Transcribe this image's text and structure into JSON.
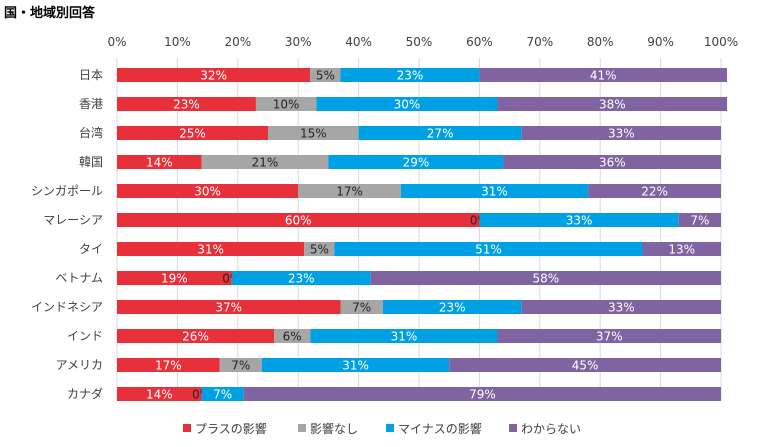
{
  "title": "国・地域別回答",
  "chart_data": {
    "type": "bar",
    "orientation": "horizontal",
    "stacked": "percent",
    "title": "国・地域別回答",
    "xlim": [
      0,
      100
    ],
    "xticks": [
      "0%",
      "10%",
      "20%",
      "30%",
      "40%",
      "50%",
      "60%",
      "70%",
      "80%",
      "90%",
      "100%"
    ],
    "categories": [
      "日本",
      "香港",
      "台湾",
      "韓国",
      "シンガポール",
      "マレーシア",
      "タイ",
      "ベトナム",
      "インドネシア",
      "インド",
      "アメリカ",
      "カナダ"
    ],
    "series": [
      {
        "name": "プラスの影響",
        "color": "#e8303a",
        "label_color": "#ffffff",
        "values": [
          32,
          23,
          25,
          14,
          30,
          60,
          31,
          19,
          37,
          26,
          17,
          14
        ]
      },
      {
        "name": "影響なし",
        "color": "#a6a6a6",
        "label_color": "#262626",
        "values": [
          5,
          10,
          15,
          21,
          17,
          0,
          5,
          0,
          7,
          6,
          7,
          0
        ]
      },
      {
        "name": "マイナスの影響",
        "color": "#00a0e4",
        "label_color": "#ffffff",
        "values": [
          23,
          30,
          27,
          29,
          31,
          33,
          51,
          23,
          23,
          31,
          31,
          7
        ]
      },
      {
        "name": "わからない",
        "color": "#8064a2",
        "label_color": "#ffffff",
        "values": [
          41,
          38,
          33,
          36,
          22,
          7,
          13,
          58,
          33,
          37,
          45,
          79
        ]
      }
    ],
    "legend_position": "bottom"
  }
}
